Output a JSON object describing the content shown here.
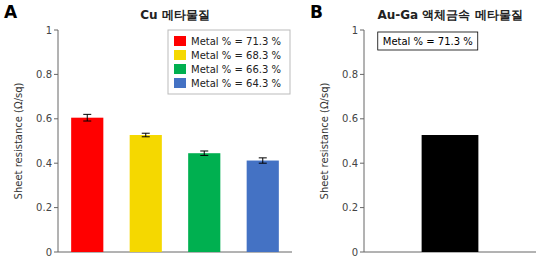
{
  "chart_data": [
    {
      "type": "bar",
      "title": "Cu 메타물질",
      "ylabel": "Sheet resistance (Ω/sq)",
      "panel_label": "A",
      "categories": [
        "Metal % = 71.3 %",
        "Metal % = 68.3 %",
        "Metal % = 66.3 %",
        "Metal % = 64.3 %"
      ],
      "values": [
        0.605,
        0.527,
        0.445,
        0.412
      ],
      "errors": [
        0.015,
        0.008,
        0.01,
        0.012
      ],
      "colors": [
        "#ff0000",
        "#f5d800",
        "#00b050",
        "#4472c4"
      ],
      "ylim": [
        0,
        1.0
      ],
      "yticks": [
        0.0,
        0.2,
        0.4,
        0.6,
        0.8,
        1.0
      ],
      "legend": "upper right",
      "tick_labels": "y",
      "grid": false
    },
    {
      "type": "bar",
      "title": "Au-Ga 액체금속 메타물질",
      "ylabel": "Sheet resistance (Ω/sq)",
      "panel_label": "B",
      "categories": [
        null
      ],
      "values": [
        0.527
      ],
      "colors": [
        "#000000"
      ],
      "annotation": "Metal % = 71.3 %",
      "ylim": [
        0,
        1.0
      ],
      "yticks": [
        0.0,
        0.2,
        0.4,
        0.6,
        0.8,
        1.0
      ],
      "tick_labels": "y",
      "grid": false
    }
  ]
}
